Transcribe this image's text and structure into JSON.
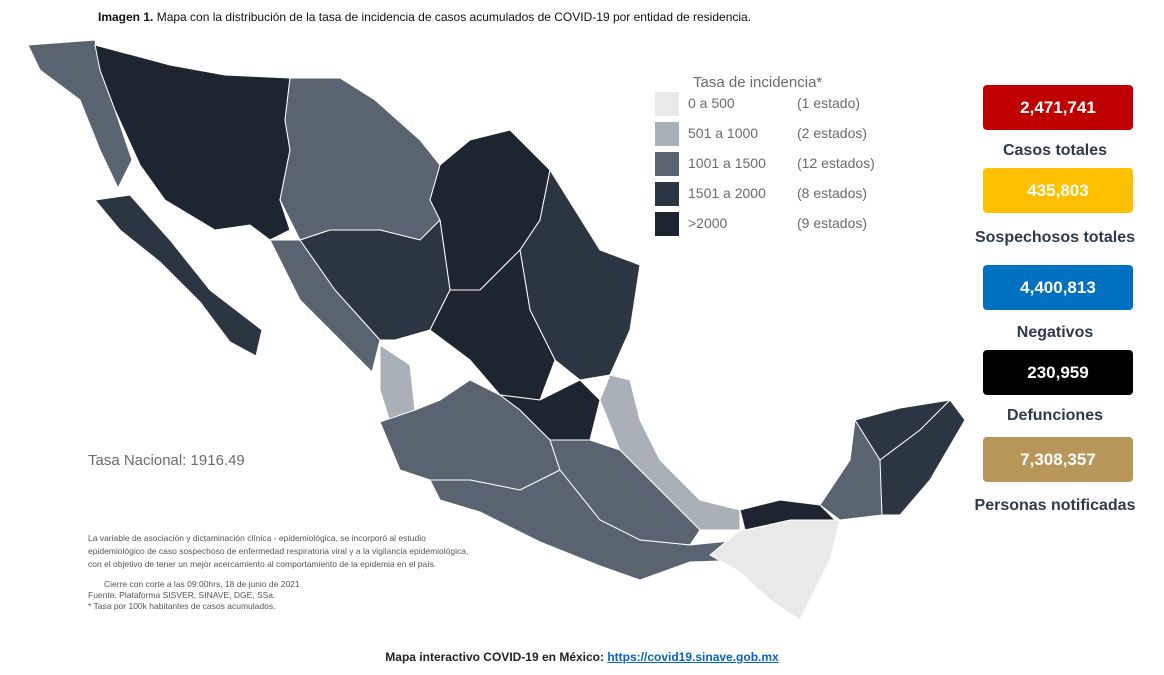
{
  "caption": {
    "label": "Imagen 1.",
    "text": " Mapa con la distribución de la tasa de incidencia de casos acumulados de COVID-19 por entidad de residencia."
  },
  "legend": {
    "title": "Tasa de incidencia*",
    "items": [
      {
        "range": "0 a 500",
        "count": "(1 estado)",
        "color": "#e9e9ea"
      },
      {
        "range": "501 a 1000",
        "count": "(2 estados)",
        "color": "#aab0b7"
      },
      {
        "range": "1001 a 1500",
        "count": "(12 estados)",
        "color": "#5a6471"
      },
      {
        "range": "1501 a 2000",
        "count": "(8 estados)",
        "color": "#2c3642"
      },
      {
        "range": ">2000",
        "count": "(9 estados)",
        "color": "#1c2530"
      }
    ]
  },
  "stats": [
    {
      "value": "2,471,741",
      "label": "Casos totales",
      "color": "#c00000",
      "text_color": "#ffffff"
    },
    {
      "value": "435,803",
      "label": "Sospechosos totales",
      "color": "#ffc000",
      "text_color": "#ffffff"
    },
    {
      "value": "4,400,813",
      "label": "Negativos",
      "color": "#0070c0",
      "text_color": "#ffffff"
    },
    {
      "value": "230,959",
      "label": "Defunciones",
      "color": "#000000",
      "text_color": "#ffffff"
    },
    {
      "value": "7,308,357",
      "label": "Personas notificadas",
      "color": "#b8965a",
      "text_color": "#ffffff"
    }
  ],
  "national_rate": "Tasa Nacional: 1916.49",
  "notes": [
    "La variable de asociación y dictaminación clínica - epidemiológica, se incorporó al estudio",
    "epidemiológico de caso sospechoso de enfermedad respiratoria viral y a la vigilancia epidemiológica,",
    "con el objetivo de tener un mejor acercamiento al comportamiento de la epidemia en el país.",
    "Cierre con corte a las 09:00hrs, 18 de junio de 2021",
    "Fuente: Plataforma SISVER, SINAVE, DGE, SSa.",
    "* Tasa por 100k habitantes de casos acumulados."
  ],
  "footer": {
    "text": "Mapa interactivo COVID-19 en México: ",
    "link": "https://covid19.sinave.gob.mx"
  }
}
